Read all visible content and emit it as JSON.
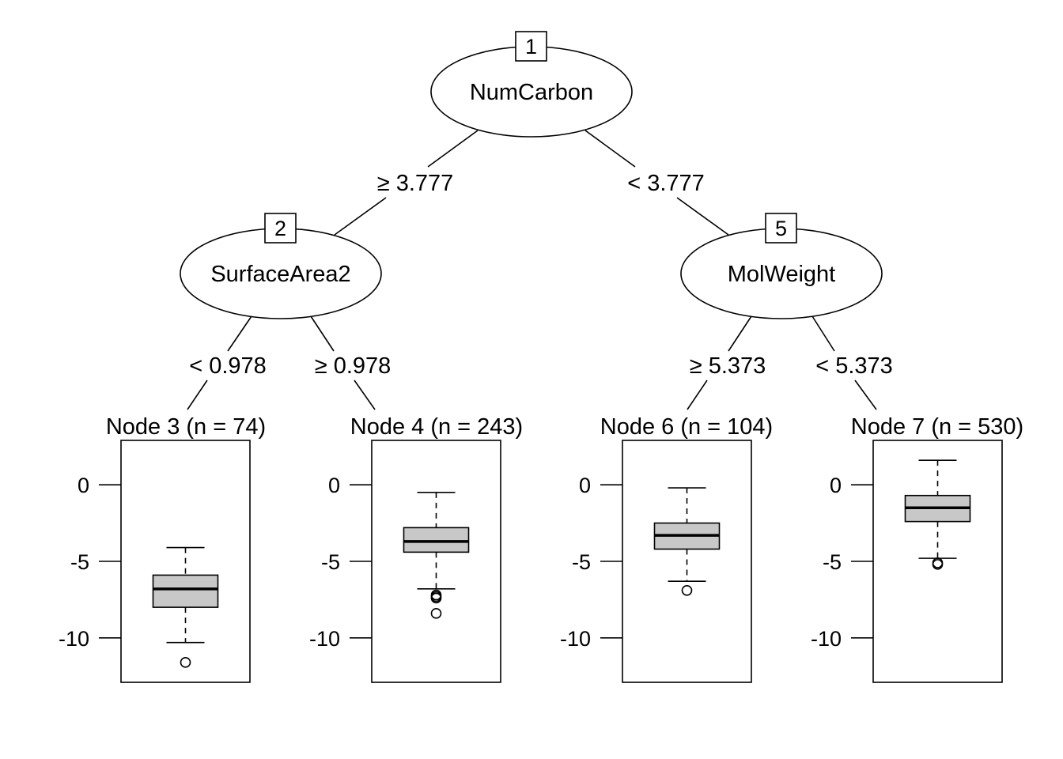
{
  "tree": {
    "inner_nodes": [
      {
        "id": "1",
        "variable": "NumCarbon"
      },
      {
        "id": "2",
        "variable": "SurfaceArea2"
      },
      {
        "id": "5",
        "variable": "MolWeight"
      }
    ],
    "edges": [
      {
        "from": "1",
        "to": "2",
        "label": "≥ 3.777"
      },
      {
        "from": "1",
        "to": "5",
        "label": "< 3.777"
      },
      {
        "from": "2",
        "to": "3",
        "label": "< 0.978"
      },
      {
        "from": "2",
        "to": "4",
        "label": "≥ 0.978"
      },
      {
        "from": "5",
        "to": "6",
        "label": "≥ 5.373"
      },
      {
        "from": "5",
        "to": "7",
        "label": "< 5.373"
      }
    ],
    "terminal_nodes": [
      {
        "id": "3",
        "title": "Node 3 (n = 74)"
      },
      {
        "id": "4",
        "title": "Node 4 (n = 243)"
      },
      {
        "id": "6",
        "title": "Node 6 (n = 104)"
      },
      {
        "id": "7",
        "title": "Node 7 (n = 530)"
      }
    ]
  },
  "chart_data": {
    "type": "boxplot",
    "ylim": [
      -12.9,
      2.9
    ],
    "yticks": [
      0,
      -5,
      -10
    ],
    "ytick_labels": [
      "0",
      "-5",
      "-10"
    ],
    "boxes": [
      {
        "node": "3",
        "whisker_high": -4.1,
        "q3": -5.9,
        "median": -6.8,
        "q1": -8.0,
        "whisker_low": -10.3,
        "outliers": [
          -11.6
        ]
      },
      {
        "node": "4",
        "whisker_high": -0.5,
        "q3": -2.8,
        "median": -3.7,
        "q1": -4.4,
        "whisker_low": -6.8,
        "outliers": [
          -7.2,
          -7.3,
          -7.4,
          -8.4
        ]
      },
      {
        "node": "6",
        "whisker_high": -0.2,
        "q3": -2.5,
        "median": -3.3,
        "q1": -4.2,
        "whisker_low": -6.3,
        "outliers": [
          -6.9
        ]
      },
      {
        "node": "7",
        "whisker_high": 1.6,
        "q3": -0.7,
        "median": -1.5,
        "q1": -2.4,
        "whisker_low": -4.8,
        "outliers": [
          -5.1,
          -5.2
        ]
      }
    ]
  }
}
